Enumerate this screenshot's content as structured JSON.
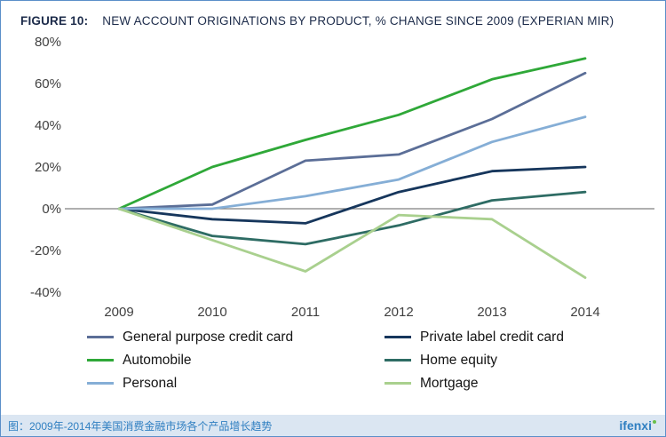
{
  "header": {
    "figure_label": "FIGURE 10:",
    "title": "NEW ACCOUNT ORIGINATIONS BY PRODUCT, % CHANGE SINCE 2009 (EXPERIAN MIR)"
  },
  "chart_data": {
    "type": "line",
    "x": [
      "2009",
      "2010",
      "2011",
      "2012",
      "2013",
      "2014"
    ],
    "series": [
      {
        "name": "General purpose credit card",
        "color": "#5b6e97",
        "values": [
          0,
          2,
          23,
          26,
          43,
          65
        ]
      },
      {
        "name": "Private label credit card",
        "color": "#16365c",
        "values": [
          0,
          -5,
          -7,
          8,
          18,
          20
        ]
      },
      {
        "name": "Automobile",
        "color": "#2fa838",
        "values": [
          0,
          20,
          33,
          45,
          62,
          72
        ]
      },
      {
        "name": "Home equity",
        "color": "#2e6c64",
        "values": [
          0,
          -13,
          -17,
          -8,
          4,
          8
        ]
      },
      {
        "name": "Personal",
        "color": "#85aed6",
        "values": [
          0,
          0,
          6,
          14,
          32,
          44
        ]
      },
      {
        "name": "Mortgage",
        "color": "#a9d08e",
        "values": [
          0,
          -15,
          -30,
          -3,
          -5,
          -33
        ]
      }
    ],
    "ylim": [
      -40,
      80
    ],
    "ytick_step": 20,
    "ytick_suffix": "%",
    "xlabel": "",
    "ylabel": "",
    "grid": "zero-line-only",
    "legend_position": "bottom",
    "zero_line_color": "#7f7f7f",
    "tick_label_color": "#404040"
  },
  "footer": {
    "caption": "图：2009年-2014年美国消费金融市场各个产品增长趋势",
    "brand": "ifenxi"
  }
}
